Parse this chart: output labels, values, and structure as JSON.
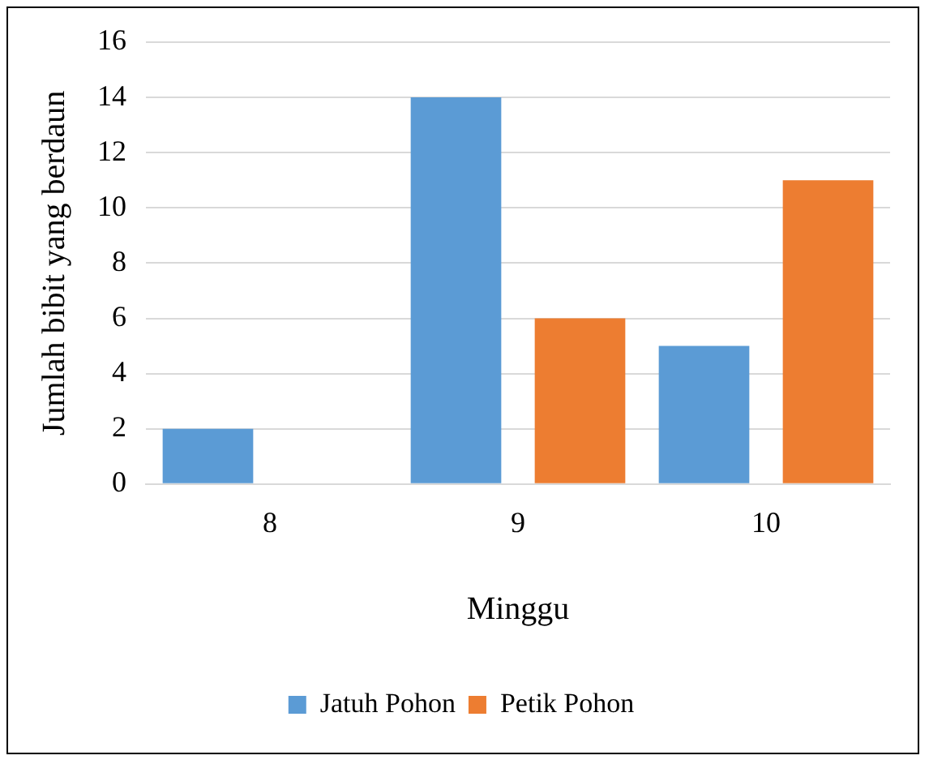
{
  "chart_data": {
    "type": "bar",
    "xlabel": "Minggu",
    "ylabel": "Jumlah bibit yang berdaun",
    "categories": [
      "8",
      "9",
      "10"
    ],
    "series": [
      {
        "name": "Jatuh Pohon",
        "color": "#5b9bd5",
        "values": [
          2,
          14,
          5
        ]
      },
      {
        "name": "Petik Pohon",
        "color": "#ed7d31",
        "values": [
          0,
          6,
          11
        ]
      }
    ],
    "ylim": [
      0,
      16
    ],
    "yticks": [
      0,
      2,
      4,
      6,
      8,
      10,
      12,
      14,
      16
    ],
    "grid": "y",
    "legend": "bottom"
  }
}
